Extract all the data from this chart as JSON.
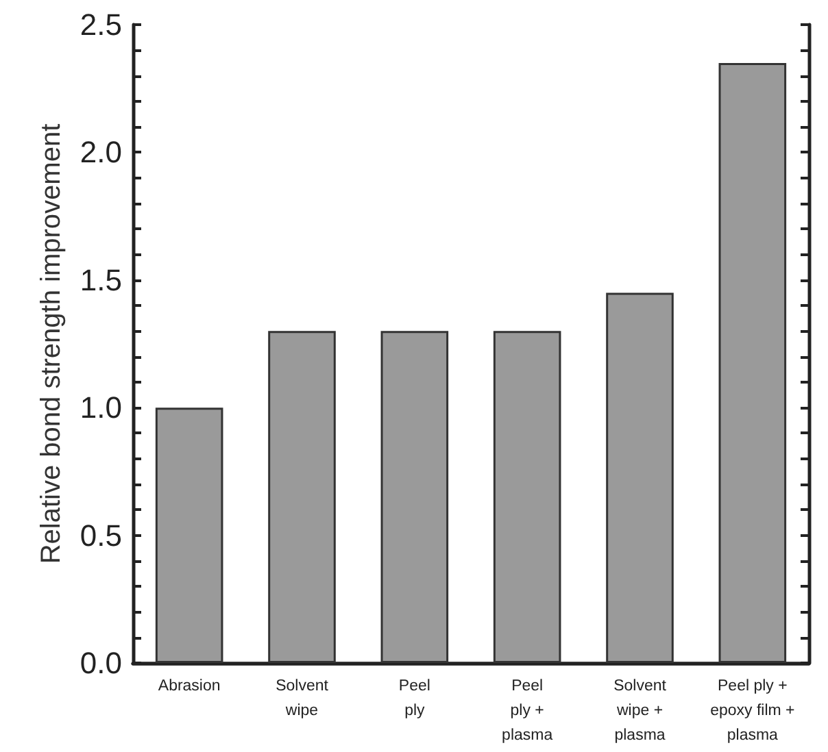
{
  "chart_data": {
    "type": "bar",
    "ylabel": "Relative bond strength improvement",
    "categories": [
      "Abrasion",
      "Solvent\nwipe",
      "Peel\nply",
      "Peel\nply +\nplasma",
      "Solvent\nwipe +\nplasma",
      "Peel ply +\nepoxy film +\nplasma"
    ],
    "values": [
      1.0,
      1.3,
      1.3,
      1.3,
      1.45,
      2.35
    ],
    "color": "#9a9a9a",
    "ylim": [
      0,
      2.5
    ],
    "yticks": [
      "0.0",
      {
        "value": 0.1,
        "label": null
      },
      {
        "value": 0.2,
        "label": null
      },
      {
        "value": 0.3,
        "label": null
      },
      {
        "value": 0.4,
        "label": null
      },
      {
        "value": 0.5,
        "label": "0.5"
      },
      {
        "value": 0.6,
        "label": null
      },
      {
        "value": 0.7,
        "label": null
      },
      {
        "value": 0.8,
        "label": null
      },
      {
        "value": 0.9,
        "label": null
      },
      {
        "value": 1.0,
        "label": "1.0"
      },
      {
        "value": 1.1,
        "label": null
      },
      {
        "value": 1.2,
        "label": null
      },
      {
        "value": 1.3,
        "label": null
      },
      {
        "value": 1.4,
        "label": null
      },
      {
        "value": 1.5,
        "label": "1.5"
      },
      {
        "value": 1.6,
        "label": null
      },
      {
        "value": 1.7,
        "label": null
      },
      {
        "value": 1.8,
        "label": null
      },
      {
        "value": 1.9,
        "label": null
      },
      {
        "value": 2.0,
        "label": "2.0"
      },
      {
        "value": 2.1,
        "label": null
      },
      {
        "value": 2.2,
        "label": null
      },
      {
        "value": 2.3,
        "label": null
      },
      {
        "value": 2.4,
        "label": null
      },
      {
        "value": 2.5,
        "label": "2.5"
      }
    ],
    "grid": false
  }
}
